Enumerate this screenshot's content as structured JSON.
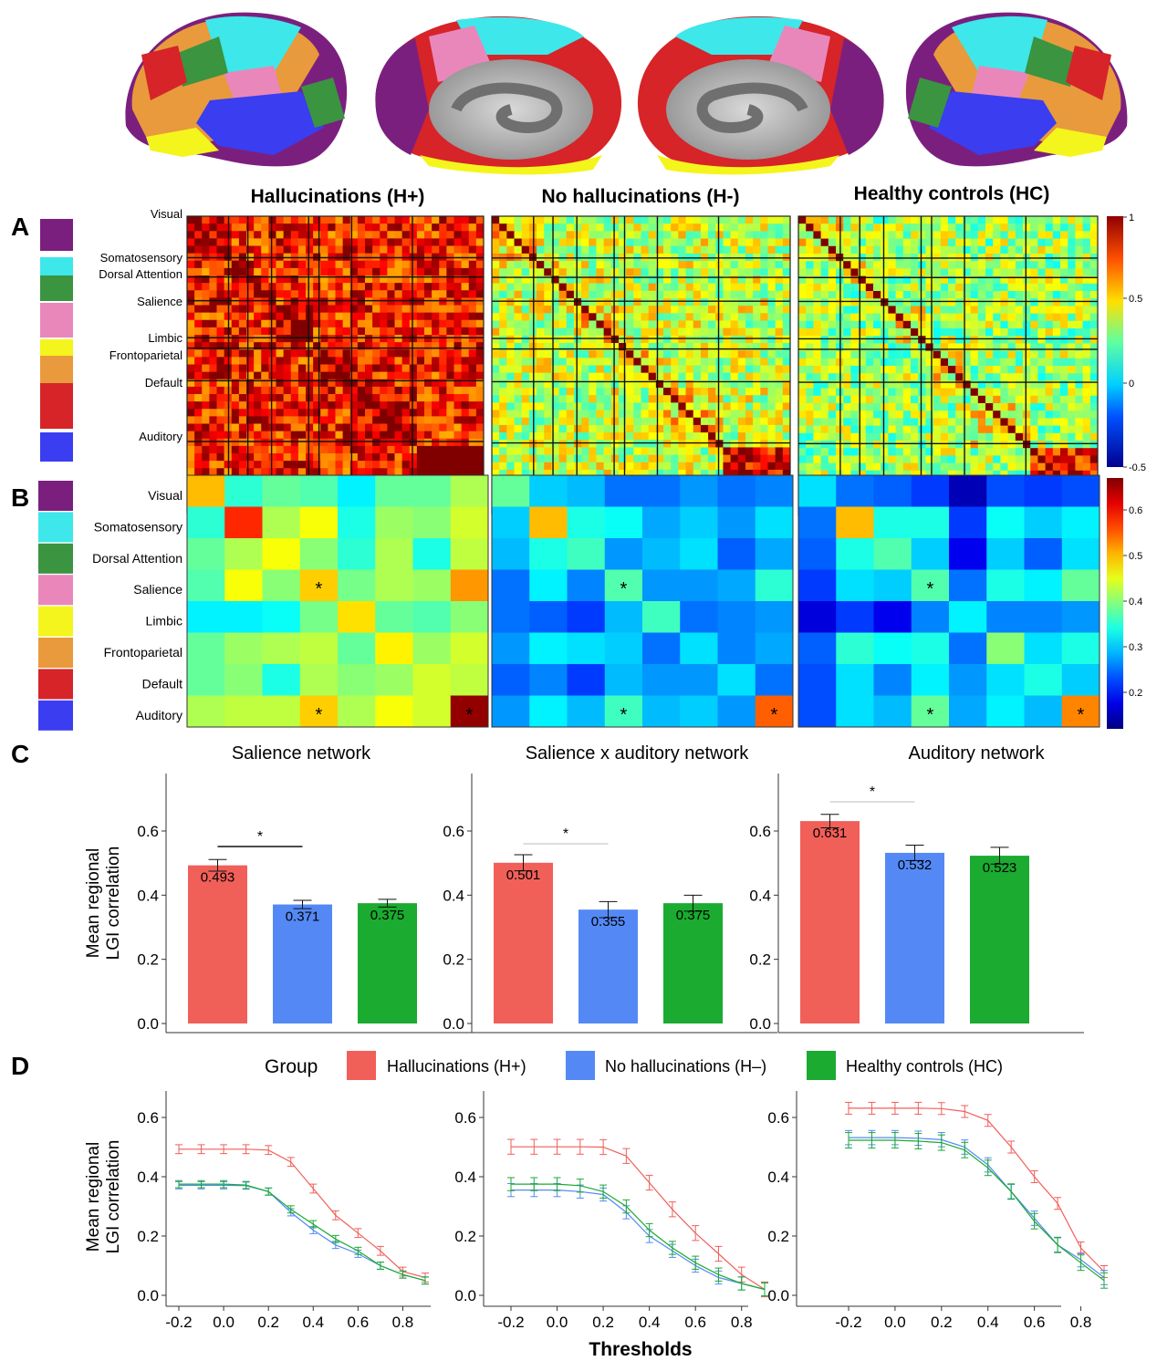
{
  "panel_letters": [
    "A",
    "B",
    "C",
    "D"
  ],
  "group_titles": [
    "Hallucinations (H+)",
    "No hallucinations (H-)",
    "Healthy controls (HC)"
  ],
  "networks": [
    {
      "name": "Visual",
      "color": "#7b1f7f"
    },
    {
      "name": "Somatosensory",
      "color": "#3ee7ea"
    },
    {
      "name": "Dorsal Attention",
      "color": "#3a9440"
    },
    {
      "name": "Salience",
      "color": "#e987bb"
    },
    {
      "name": "Limbic",
      "color": "#f4f51c"
    },
    {
      "name": "Frontoparietal",
      "color": "#e89a3c"
    },
    {
      "name": "Default",
      "color": "#d62428"
    },
    {
      "name": "Auditory",
      "color": "#3b3df0"
    }
  ],
  "colorbar_A": {
    "ticks": [
      "1",
      "0.5",
      "0",
      "-0.5"
    ]
  },
  "colorbar_B": {
    "ticks": [
      "0.6",
      "0.5",
      "0.4",
      "0.3",
      "0.2"
    ]
  },
  "star": "*",
  "group_colors": {
    "hplus": "#f15f59",
    "hminus": "#5489f5",
    "hc": "#1aab30"
  },
  "chart_data": [
    {
      "type": "heatmap",
      "panel": "B",
      "title": "Hallucinations (H+)",
      "rows": [
        "Visual",
        "Somatosensory",
        "Dorsal Attention",
        "Salience",
        "Limbic",
        "Frontoparietal",
        "Default",
        "Auditory"
      ],
      "values": [
        [
          0.5,
          0.35,
          0.38,
          0.37,
          0.32,
          0.38,
          0.38,
          0.42
        ],
        [
          0.35,
          0.58,
          0.42,
          0.46,
          0.34,
          0.41,
          0.4,
          0.44
        ],
        [
          0.38,
          0.42,
          0.46,
          0.4,
          0.35,
          0.42,
          0.34,
          0.43
        ],
        [
          0.37,
          0.46,
          0.4,
          0.49,
          0.39,
          0.42,
          0.41,
          0.52
        ],
        [
          0.32,
          0.32,
          0.33,
          0.39,
          0.48,
          0.38,
          0.37,
          0.4
        ],
        [
          0.38,
          0.41,
          0.42,
          0.43,
          0.38,
          0.47,
          0.41,
          0.44
        ],
        [
          0.38,
          0.4,
          0.34,
          0.42,
          0.4,
          0.41,
          0.44,
          0.43
        ],
        [
          0.42,
          0.43,
          0.43,
          0.49,
          0.42,
          0.46,
          0.44,
          0.66
        ]
      ],
      "starred": [
        [
          3,
          3
        ],
        [
          7,
          3
        ],
        [
          7,
          7
        ]
      ]
    },
    {
      "type": "heatmap",
      "panel": "B",
      "title": "No hallucinations (H-)",
      "rows": [
        "Visual",
        "Somatosensory",
        "Dorsal Attention",
        "Salience",
        "Limbic",
        "Frontoparietal",
        "Default",
        "Auditory"
      ],
      "values": [
        [
          0.38,
          0.3,
          0.29,
          0.25,
          0.25,
          0.27,
          0.25,
          0.26
        ],
        [
          0.3,
          0.5,
          0.34,
          0.33,
          0.28,
          0.3,
          0.27,
          0.31
        ],
        [
          0.29,
          0.34,
          0.36,
          0.27,
          0.29,
          0.31,
          0.24,
          0.28
        ],
        [
          0.25,
          0.32,
          0.26,
          0.37,
          0.27,
          0.27,
          0.28,
          0.35
        ],
        [
          0.25,
          0.24,
          0.22,
          0.29,
          0.36,
          0.25,
          0.26,
          0.27
        ],
        [
          0.27,
          0.32,
          0.31,
          0.3,
          0.25,
          0.31,
          0.26,
          0.28
        ],
        [
          0.24,
          0.26,
          0.22,
          0.29,
          0.27,
          0.27,
          0.31,
          0.25
        ],
        [
          0.27,
          0.32,
          0.29,
          0.36,
          0.29,
          0.3,
          0.27,
          0.55
        ]
      ],
      "starred": [
        [
          3,
          3
        ],
        [
          7,
          3
        ],
        [
          7,
          7
        ]
      ]
    },
    {
      "type": "heatmap",
      "panel": "B",
      "title": "Healthy controls (HC)",
      "rows": [
        "Visual",
        "Somatosensory",
        "Dorsal Attention",
        "Salience",
        "Limbic",
        "Frontoparietal",
        "Default",
        "Auditory"
      ],
      "values": [
        [
          0.31,
          0.25,
          0.24,
          0.22,
          0.15,
          0.23,
          0.22,
          0.23
        ],
        [
          0.25,
          0.5,
          0.34,
          0.34,
          0.22,
          0.33,
          0.3,
          0.32
        ],
        [
          0.24,
          0.34,
          0.37,
          0.3,
          0.18,
          0.3,
          0.24,
          0.31
        ],
        [
          0.22,
          0.31,
          0.3,
          0.37,
          0.25,
          0.34,
          0.32,
          0.38
        ],
        [
          0.17,
          0.22,
          0.18,
          0.26,
          0.32,
          0.26,
          0.26,
          0.27
        ],
        [
          0.24,
          0.35,
          0.33,
          0.34,
          0.25,
          0.4,
          0.31,
          0.34
        ],
        [
          0.23,
          0.31,
          0.26,
          0.32,
          0.27,
          0.31,
          0.34,
          0.3
        ],
        [
          0.23,
          0.31,
          0.29,
          0.38,
          0.28,
          0.32,
          0.29,
          0.53
        ]
      ],
      "starred": [
        [
          3,
          3
        ],
        [
          7,
          3
        ],
        [
          7,
          7
        ]
      ]
    },
    {
      "type": "bar",
      "panel": "C",
      "title": "Salience network",
      "ylabel": "Mean regional LGI correlation",
      "ylim": [
        0,
        0.75
      ],
      "ticks": [
        "0.0",
        "0.2",
        "0.4",
        "0.6"
      ],
      "series": [
        {
          "name": "Hallucinations (H+)",
          "value": 0.493,
          "label": "0.493",
          "err": 0.018
        },
        {
          "name": "No hallucinations (H–)",
          "value": 0.371,
          "label": "0.371",
          "err": 0.013
        },
        {
          "name": "Healthy controls (HC)",
          "value": 0.375,
          "label": "0.375",
          "err": 0.012
        }
      ],
      "sig": "*"
    },
    {
      "type": "bar",
      "panel": "C",
      "title": "Salience x auditory network",
      "ylabel": "",
      "ylim": [
        0,
        0.75
      ],
      "ticks": [
        "0.0",
        "0.2",
        "0.4",
        "0.6"
      ],
      "series": [
        {
          "name": "Hallucinations (H+)",
          "value": 0.501,
          "label": "0.501",
          "err": 0.025
        },
        {
          "name": "No hallucinations (H–)",
          "value": 0.355,
          "label": "0.355",
          "err": 0.025
        },
        {
          "name": "Healthy controls (HC)",
          "value": 0.375,
          "label": "0.375",
          "err": 0.025
        }
      ],
      "sig": "*"
    },
    {
      "type": "bar",
      "panel": "C",
      "title": "Auditory network",
      "ylabel": "",
      "ylim": [
        0,
        0.75
      ],
      "ticks": [
        "0.0",
        "0.2",
        "0.4",
        "0.6"
      ],
      "series": [
        {
          "name": "Hallucinations (H+)",
          "value": 0.631,
          "label": "0.631",
          "err": 0.021
        },
        {
          "name": "No hallucinations (H–)",
          "value": 0.532,
          "label": "0.532",
          "err": 0.024
        },
        {
          "name": "Healthy controls (HC)",
          "value": 0.523,
          "label": "0.523",
          "err": 0.026
        }
      ],
      "sig": "*"
    },
    {
      "type": "line",
      "panel": "D",
      "ylabel": "Mean regional LGI correlation",
      "ylim": [
        0,
        0.65
      ],
      "ticks_y": [
        "0.0",
        "0.2",
        "0.4",
        "0.6"
      ],
      "ticks_x": [
        "-0.2",
        "0.0",
        "0.2",
        "0.4",
        "0.6",
        "0.8"
      ],
      "x": [
        -0.2,
        -0.1,
        0.0,
        0.1,
        0.2,
        0.3,
        0.4,
        0.5,
        0.6,
        0.7,
        0.8,
        0.9
      ],
      "series": [
        {
          "name": "Hallucinations (H+)",
          "values": [
            0.493,
            0.493,
            0.493,
            0.493,
            0.49,
            0.45,
            0.36,
            0.27,
            0.21,
            0.15,
            0.08,
            0.06
          ],
          "err": 0.015
        },
        {
          "name": "No hallucinations (H–)",
          "values": [
            0.371,
            0.371,
            0.371,
            0.37,
            0.35,
            0.28,
            0.22,
            0.17,
            0.14,
            0.1,
            0.07,
            0.05
          ],
          "err": 0.012
        },
        {
          "name": "Healthy controls (HC)",
          "values": [
            0.375,
            0.375,
            0.375,
            0.372,
            0.35,
            0.29,
            0.24,
            0.19,
            0.15,
            0.1,
            0.07,
            0.05
          ],
          "err": 0.012
        }
      ]
    },
    {
      "type": "line",
      "panel": "D",
      "xlabel": "Thresholds",
      "ylim": [
        0,
        0.65
      ],
      "ticks_y": [
        "0.0",
        "0.2",
        "0.4",
        "0.6"
      ],
      "ticks_x": [
        "-0.2",
        "0.0",
        "0.2",
        "0.4",
        "0.6",
        "0.8"
      ],
      "x": [
        -0.2,
        -0.1,
        0.0,
        0.1,
        0.2,
        0.3,
        0.4,
        0.5,
        0.6,
        0.7,
        0.8,
        0.9
      ],
      "series": [
        {
          "name": "Hallucinations (H+)",
          "values": [
            0.501,
            0.501,
            0.501,
            0.501,
            0.5,
            0.47,
            0.38,
            0.29,
            0.21,
            0.14,
            0.07,
            0.02
          ],
          "err": 0.025
        },
        {
          "name": "No hallucinations (H–)",
          "values": [
            0.355,
            0.355,
            0.355,
            0.35,
            0.34,
            0.28,
            0.2,
            0.15,
            0.1,
            0.06,
            0.04,
            0.02
          ],
          "err": 0.022
        },
        {
          "name": "Healthy controls (HC)",
          "values": [
            0.375,
            0.375,
            0.375,
            0.37,
            0.35,
            0.3,
            0.22,
            0.16,
            0.11,
            0.07,
            0.04,
            0.02
          ],
          "err": 0.022
        }
      ]
    },
    {
      "type": "line",
      "panel": "D",
      "ylim": [
        0,
        0.65
      ],
      "ticks_y": [
        "0.0",
        "0.2",
        "0.4",
        "0.6"
      ],
      "ticks_x": [
        "-0.2",
        "0.0",
        "0.2",
        "0.4",
        "0.6",
        "0.8"
      ],
      "x": [
        -0.2,
        -0.1,
        0.0,
        0.1,
        0.2,
        0.3,
        0.4,
        0.5,
        0.6,
        0.7,
        0.8,
        0.9
      ],
      "series": [
        {
          "name": "Hallucinations (H+)",
          "values": [
            0.631,
            0.631,
            0.631,
            0.631,
            0.63,
            0.62,
            0.59,
            0.5,
            0.4,
            0.31,
            0.16,
            0.08
          ],
          "err": 0.02
        },
        {
          "name": "No hallucinations (H–)",
          "values": [
            0.532,
            0.532,
            0.532,
            0.53,
            0.525,
            0.5,
            0.44,
            0.35,
            0.26,
            0.17,
            0.12,
            0.06
          ],
          "err": 0.024
        },
        {
          "name": "Healthy controls (HC)",
          "values": [
            0.523,
            0.523,
            0.523,
            0.52,
            0.515,
            0.49,
            0.43,
            0.35,
            0.25,
            0.17,
            0.11,
            0.05
          ],
          "err": 0.026
        }
      ]
    }
  ],
  "legend": {
    "title": "Group",
    "items": [
      {
        "label": "Hallucinations (H+)",
        "color": "#f15f59"
      },
      {
        "label": "No hallucinations (H–)",
        "color": "#5489f5"
      },
      {
        "label": "Healthy controls (HC)",
        "color": "#1aab30"
      }
    ]
  }
}
